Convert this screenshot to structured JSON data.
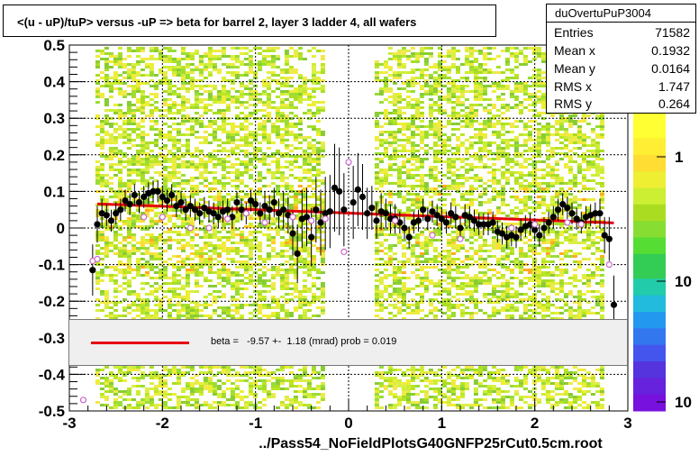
{
  "title": "<(u - uP)/tuP> versus  -uP => beta for barrel 2, layer 3 ladder 4, all wafers",
  "footer": "../Pass54_NoFieldPlotsG40GNFP25rCut0.5cm.root",
  "stats": {
    "name": "duOvertuPuP3004",
    "rows": [
      {
        "key": "Entries",
        "value": "71582"
      },
      {
        "key": "Mean x",
        "value": "0.1932"
      },
      {
        "key": "Mean y",
        "value": "0.0164"
      },
      {
        "key": "RMS x",
        "value": "1.747"
      },
      {
        "key": "RMS y",
        "value": "0.264"
      }
    ]
  },
  "fit": {
    "label": "beta =   -9.57 +-  1.18 (mrad) prob = 0.019"
  },
  "colors": {
    "fit_line": "#e8000c",
    "points": "#000000",
    "open_markers": "#cc66cc"
  },
  "chart_data": {
    "type": "scatter",
    "title": "<(u - uP)/tuP> versus  -uP => beta for barrel 2, layer 3 ladder 4, all wafers",
    "xlabel": "",
    "ylabel": "",
    "xlim": [
      -3,
      3
    ],
    "ylim": [
      -0.5,
      0.5
    ],
    "x_ticks": [
      "-3",
      "-2",
      "-1",
      "0",
      "1",
      "2",
      "3"
    ],
    "y_ticks": [
      "-0.5",
      "-0.4",
      "-0.3",
      "-0.2",
      "-0.1",
      "0",
      "0.1",
      "0.2",
      "0.3",
      "0.4",
      "0.5"
    ],
    "grid": true,
    "colorbar_ticks": [
      "1",
      "10",
      "10"
    ],
    "fit_line": {
      "x": [
        -2.7,
        2.85
      ],
      "y": [
        0.066,
        0.014
      ]
    },
    "series": [
      {
        "x": [
          -2.75,
          -2.7,
          -2.65,
          -2.6,
          -2.55,
          -2.5,
          -2.45,
          -2.4,
          -2.35,
          -2.3,
          -2.25,
          -2.2,
          -2.15,
          -2.1,
          -2.05,
          -2.0,
          -1.95,
          -1.9,
          -1.85,
          -1.8,
          -1.75,
          -1.7,
          -1.65,
          -1.6,
          -1.55,
          -1.5,
          -1.45,
          -1.4,
          -1.35,
          -1.3,
          -1.25,
          -1.2,
          -1.15,
          -1.1,
          -1.05,
          -1.0,
          -0.95,
          -0.9,
          -0.85,
          -0.8,
          -0.75,
          -0.7,
          -0.65,
          -0.6,
          -0.55,
          -0.5,
          -0.45,
          -0.4,
          -0.35,
          -0.3,
          -0.25,
          -0.2,
          -0.15,
          -0.1,
          -0.05,
          0.05,
          0.1,
          0.15,
          0.2,
          0.25,
          0.3,
          0.35,
          0.4,
          0.45,
          0.5,
          0.55,
          0.6,
          0.65,
          0.7,
          0.75,
          0.8,
          0.85,
          0.9,
          0.95,
          1.0,
          1.05,
          1.1,
          1.15,
          1.2,
          1.25,
          1.3,
          1.35,
          1.4,
          1.45,
          1.5,
          1.55,
          1.6,
          1.65,
          1.7,
          1.75,
          1.8,
          1.85,
          1.9,
          1.95,
          2.0,
          2.05,
          2.1,
          2.15,
          2.2,
          2.25,
          2.3,
          2.35,
          2.4,
          2.45,
          2.5,
          2.55,
          2.6,
          2.65,
          2.7,
          2.75,
          2.8,
          2.85
        ],
        "y": [
          -0.115,
          0.01,
          0.04,
          0.035,
          0.02,
          0.04,
          0.05,
          0.075,
          0.065,
          0.09,
          0.07,
          0.085,
          0.095,
          0.1,
          0.1,
          0.085,
          0.075,
          0.09,
          0.06,
          0.07,
          0.05,
          0.06,
          0.05,
          0.04,
          0.055,
          0.045,
          0.04,
          0.03,
          0.045,
          0.05,
          0.03,
          0.07,
          0.05,
          0.04,
          0.075,
          0.065,
          0.04,
          0.06,
          0.05,
          0.07,
          0.04,
          0.05,
          0.035,
          -0.015,
          -0.07,
          0.025,
          0.03,
          -0.025,
          0.05,
          0.015,
          0.04,
          0.045,
          0.11,
          0.1,
          0.05,
          0.07,
          0.105,
          0.085,
          0.04,
          0.055,
          0.02,
          0.045,
          0.04,
          0.025,
          0.025,
          0.015,
          0.0,
          -0.025,
          0.015,
          0.02,
          0.05,
          0.025,
          0.045,
          0.035,
          0.025,
          0.015,
          0.04,
          0.03,
          0.0,
          0.035,
          0.03,
          0.02,
          0.01,
          0.01,
          0.01,
          0.015,
          -0.01,
          -0.015,
          -0.025,
          -0.02,
          -0.025,
          -0.005,
          0.005,
          0.01,
          -0.005,
          -0.02,
          0.0,
          0.015,
          0.03,
          0.05,
          0.065,
          0.055,
          0.04,
          0.025,
          0.015,
          0.03,
          0.035,
          0.04,
          0.04,
          -0.02,
          -0.03,
          -0.21
        ],
        "err": [
          0.07,
          0.05,
          0.04,
          0.03,
          0.03,
          0.03,
          0.03,
          0.03,
          0.03,
          0.03,
          0.03,
          0.03,
          0.03,
          0.03,
          0.03,
          0.03,
          0.03,
          0.03,
          0.03,
          0.03,
          0.03,
          0.03,
          0.03,
          0.03,
          0.03,
          0.03,
          0.03,
          0.03,
          0.03,
          0.03,
          0.03,
          0.03,
          0.03,
          0.03,
          0.03,
          0.03,
          0.03,
          0.04,
          0.04,
          0.04,
          0.04,
          0.05,
          0.05,
          0.06,
          0.08,
          0.08,
          0.08,
          0.08,
          0.09,
          0.09,
          0.1,
          0.1,
          0.12,
          0.12,
          0.1,
          0.1,
          0.1,
          0.09,
          0.07,
          0.06,
          0.05,
          0.05,
          0.04,
          0.04,
          0.04,
          0.03,
          0.03,
          0.03,
          0.03,
          0.03,
          0.03,
          0.03,
          0.03,
          0.03,
          0.03,
          0.03,
          0.03,
          0.03,
          0.03,
          0.03,
          0.03,
          0.03,
          0.03,
          0.03,
          0.03,
          0.03,
          0.03,
          0.03,
          0.03,
          0.03,
          0.03,
          0.03,
          0.03,
          0.03,
          0.03,
          0.03,
          0.03,
          0.03,
          0.03,
          0.03,
          0.03,
          0.03,
          0.03,
          0.03,
          0.03,
          0.03,
          0.03,
          0.03,
          0.04,
          0.05,
          0.06,
          0.08
        ]
      }
    ],
    "open_markers": {
      "x": [
        -2.85,
        -2.75,
        -2.7,
        -2.2,
        -2.0,
        -1.7,
        -1.5,
        -1.3,
        -1.1,
        -0.9,
        -0.6,
        -0.4,
        -0.25,
        0.0,
        -0.05,
        0.5,
        0.9,
        1.2,
        1.75,
        2.0,
        2.35,
        2.5,
        2.8
      ],
      "y": [
        -0.47,
        -0.09,
        -0.085,
        0.03,
        0.03,
        0.0,
        0.0,
        0.025,
        0.04,
        0.015,
        0.03,
        0.02,
        0.025,
        0.18,
        -0.065,
        0.02,
        -0.02,
        -0.03,
        0.0,
        0.01,
        0.015,
        0.01,
        -0.1
      ]
    }
  }
}
